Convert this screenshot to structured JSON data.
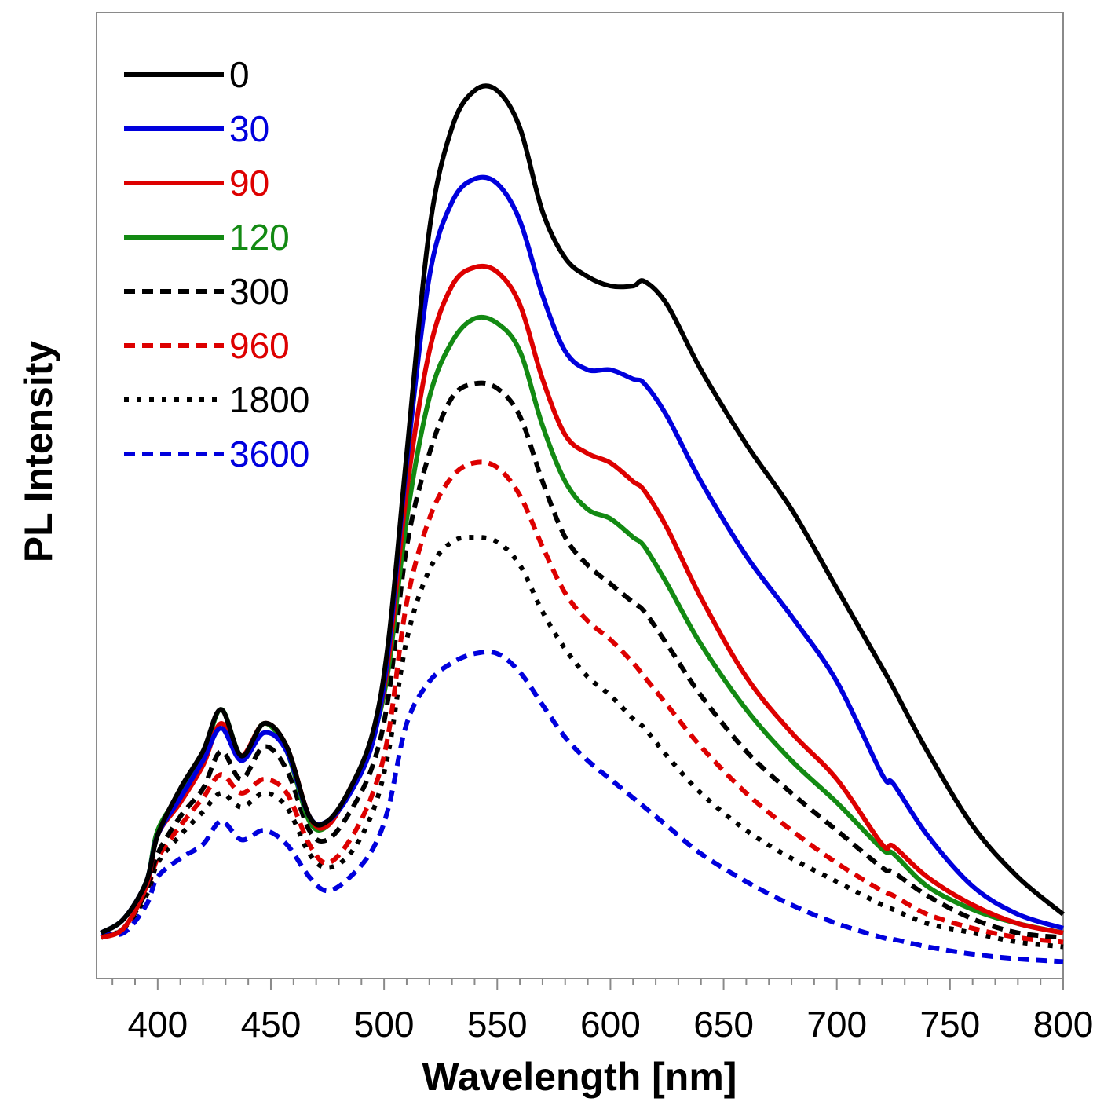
{
  "chart_data": {
    "type": "line",
    "title": "",
    "xlabel": "Wavelength [nm]",
    "ylabel": "PL Intensity",
    "xlim": [
      373,
      800
    ],
    "ylim": [
      0,
      100
    ],
    "x_ticks": [
      400,
      450,
      500,
      550,
      600,
      650,
      700,
      750,
      800
    ],
    "x_tick_labels": [
      "400",
      "450",
      "500",
      "550",
      "600",
      "650",
      "700",
      "750",
      "800"
    ],
    "y_ticks_shown": false,
    "grid": false,
    "legend_position": "top-left",
    "x": [
      375,
      385,
      395,
      400,
      410,
      420,
      428,
      437,
      447,
      457,
      467,
      475,
      485,
      495,
      502,
      510,
      520,
      530,
      540,
      550,
      560,
      570,
      580,
      590,
      600,
      610,
      615,
      625,
      640,
      660,
      680,
      700,
      720,
      725,
      740,
      760,
      780,
      800
    ],
    "series": [
      {
        "name": "0",
        "color": "#000000",
        "dash": "solid",
        "values": [
          4.5,
          6,
          10,
          15,
          20,
          24,
          28.5,
          23.5,
          27,
          24.5,
          17,
          16.5,
          20,
          26,
          36,
          56,
          80,
          91,
          95,
          95,
          91,
          82,
          77,
          75,
          74,
          74,
          74.5,
          72,
          65,
          57,
          50,
          41.5,
          33,
          30.8,
          24,
          16,
          10.5,
          6.5
        ]
      },
      {
        "name": "30",
        "color": "#0000dd",
        "dash": "solid",
        "values": [
          4.5,
          6,
          10,
          15,
          19,
          23,
          26.5,
          23,
          26,
          24,
          17,
          16.5,
          19.5,
          25,
          35,
          55,
          75,
          83,
          85.5,
          85,
          81,
          73,
          67,
          65,
          65,
          64,
          63.5,
          60,
          53,
          45,
          38.5,
          31.5,
          21.5,
          20.5,
          15,
          9.5,
          6.5,
          5
        ]
      },
      {
        "name": "90",
        "color": "#dd0000",
        "dash": "solid",
        "values": [
          4,
          5,
          9.5,
          15,
          18.5,
          22.5,
          27,
          23.5,
          27,
          24.5,
          17,
          16,
          20,
          25.5,
          34,
          52,
          67,
          74,
          76,
          75.5,
          72,
          64,
          58,
          56,
          55,
          53,
          52,
          48,
          40.5,
          32,
          26,
          21,
          14,
          13.8,
          10.5,
          7.5,
          5.5,
          4.5
        ]
      },
      {
        "name": "120",
        "color": "#138a13",
        "dash": "solid",
        "values": [
          4.5,
          6,
          10,
          15.5,
          19.5,
          23.5,
          28.5,
          23.5,
          27,
          24,
          16.5,
          16,
          20,
          25.5,
          33,
          49,
          62,
          68,
          70.5,
          70,
          67,
          59,
          53,
          50,
          49,
          47,
          46,
          42,
          35.5,
          28.5,
          23,
          18.5,
          13.5,
          13,
          9.5,
          7,
          5.5,
          4.5
        ]
      },
      {
        "name": "300",
        "color": "#000000",
        "dash": "dashed",
        "values": [
          4,
          5,
          9,
          13,
          17,
          20,
          24,
          21,
          24.5,
          22,
          15.5,
          14.5,
          17.5,
          22.5,
          30,
          46,
          56,
          62,
          63.5,
          63,
          60,
          53,
          47,
          44,
          42,
          40,
          39,
          35.5,
          30,
          24,
          19.5,
          15.5,
          11.5,
          11,
          8.5,
          6,
          4.5,
          4
        ]
      },
      {
        "name": "960",
        "color": "#dd0000",
        "dash": "dashed",
        "values": [
          4,
          5,
          9,
          12.5,
          16,
          19,
          21.5,
          19.5,
          21,
          19.5,
          14,
          12,
          14.5,
          19.5,
          26,
          40,
          49,
          53.5,
          55,
          54.5,
          51.5,
          46,
          41,
          38,
          36,
          33.5,
          32,
          29,
          24.5,
          19.5,
          15.5,
          12,
          9,
          8.5,
          6.5,
          5,
          4,
          3.5
        ]
      },
      {
        "name": "1800",
        "color": "#000000",
        "dash": "dotted",
        "values": [
          4,
          5,
          8.5,
          12,
          15,
          17.5,
          19.5,
          18,
          19.5,
          18,
          13,
          11.5,
          13,
          17.5,
          24,
          36,
          43.5,
          46.5,
          47,
          46.5,
          44,
          39,
          35,
          32,
          30,
          27.5,
          26.5,
          23.5,
          19.5,
          15.5,
          12.5,
          10,
          7.5,
          7,
          5.5,
          4.5,
          3.5,
          3
        ]
      },
      {
        "name": "3600",
        "color": "#0000dd",
        "dash": "dashed",
        "values": [
          4.5,
          4.5,
          7.5,
          10.5,
          12.5,
          14,
          16.5,
          14.5,
          15.5,
          14,
          10.5,
          9,
          10.5,
          13.5,
          18,
          27,
          31.5,
          33.5,
          34.5,
          34.5,
          32.5,
          29,
          25.5,
          23,
          21,
          19,
          18,
          16,
          13,
          10,
          7.5,
          5.5,
          4,
          3.8,
          3,
          2.2,
          1.7,
          1.4
        ]
      }
    ]
  }
}
